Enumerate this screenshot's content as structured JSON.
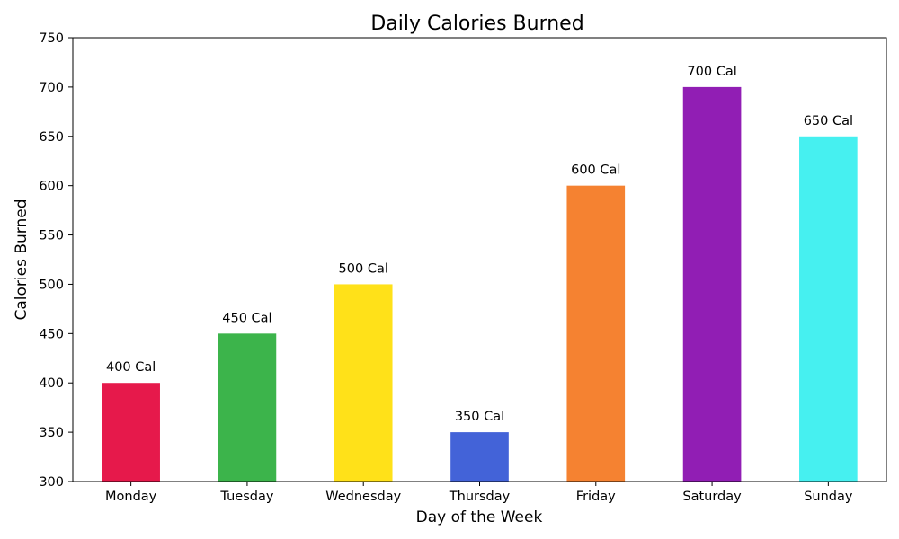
{
  "chart_data": {
    "type": "bar",
    "title": "Daily Calories Burned",
    "xlabel": "Day of the Week",
    "ylabel": "Calories Burned",
    "categories": [
      "Monday",
      "Tuesday",
      "Wednesday",
      "Thursday",
      "Friday",
      "Saturday",
      "Sunday"
    ],
    "values": [
      400,
      450,
      500,
      350,
      600,
      700,
      650
    ],
    "data_labels": [
      "400 Cal",
      "450 Cal",
      "500 Cal",
      "350 Cal",
      "600 Cal",
      "700 Cal",
      "650 Cal"
    ],
    "colors": [
      "#e6194b",
      "#3cb44b",
      "#ffe119",
      "#4363d8",
      "#f58231",
      "#911eb4",
      "#46f0f0"
    ],
    "ylim": [
      300,
      750
    ],
    "yticks": [
      300,
      350,
      400,
      450,
      500,
      550,
      600,
      650,
      700,
      750
    ],
    "grid": false,
    "legend": "none"
  }
}
